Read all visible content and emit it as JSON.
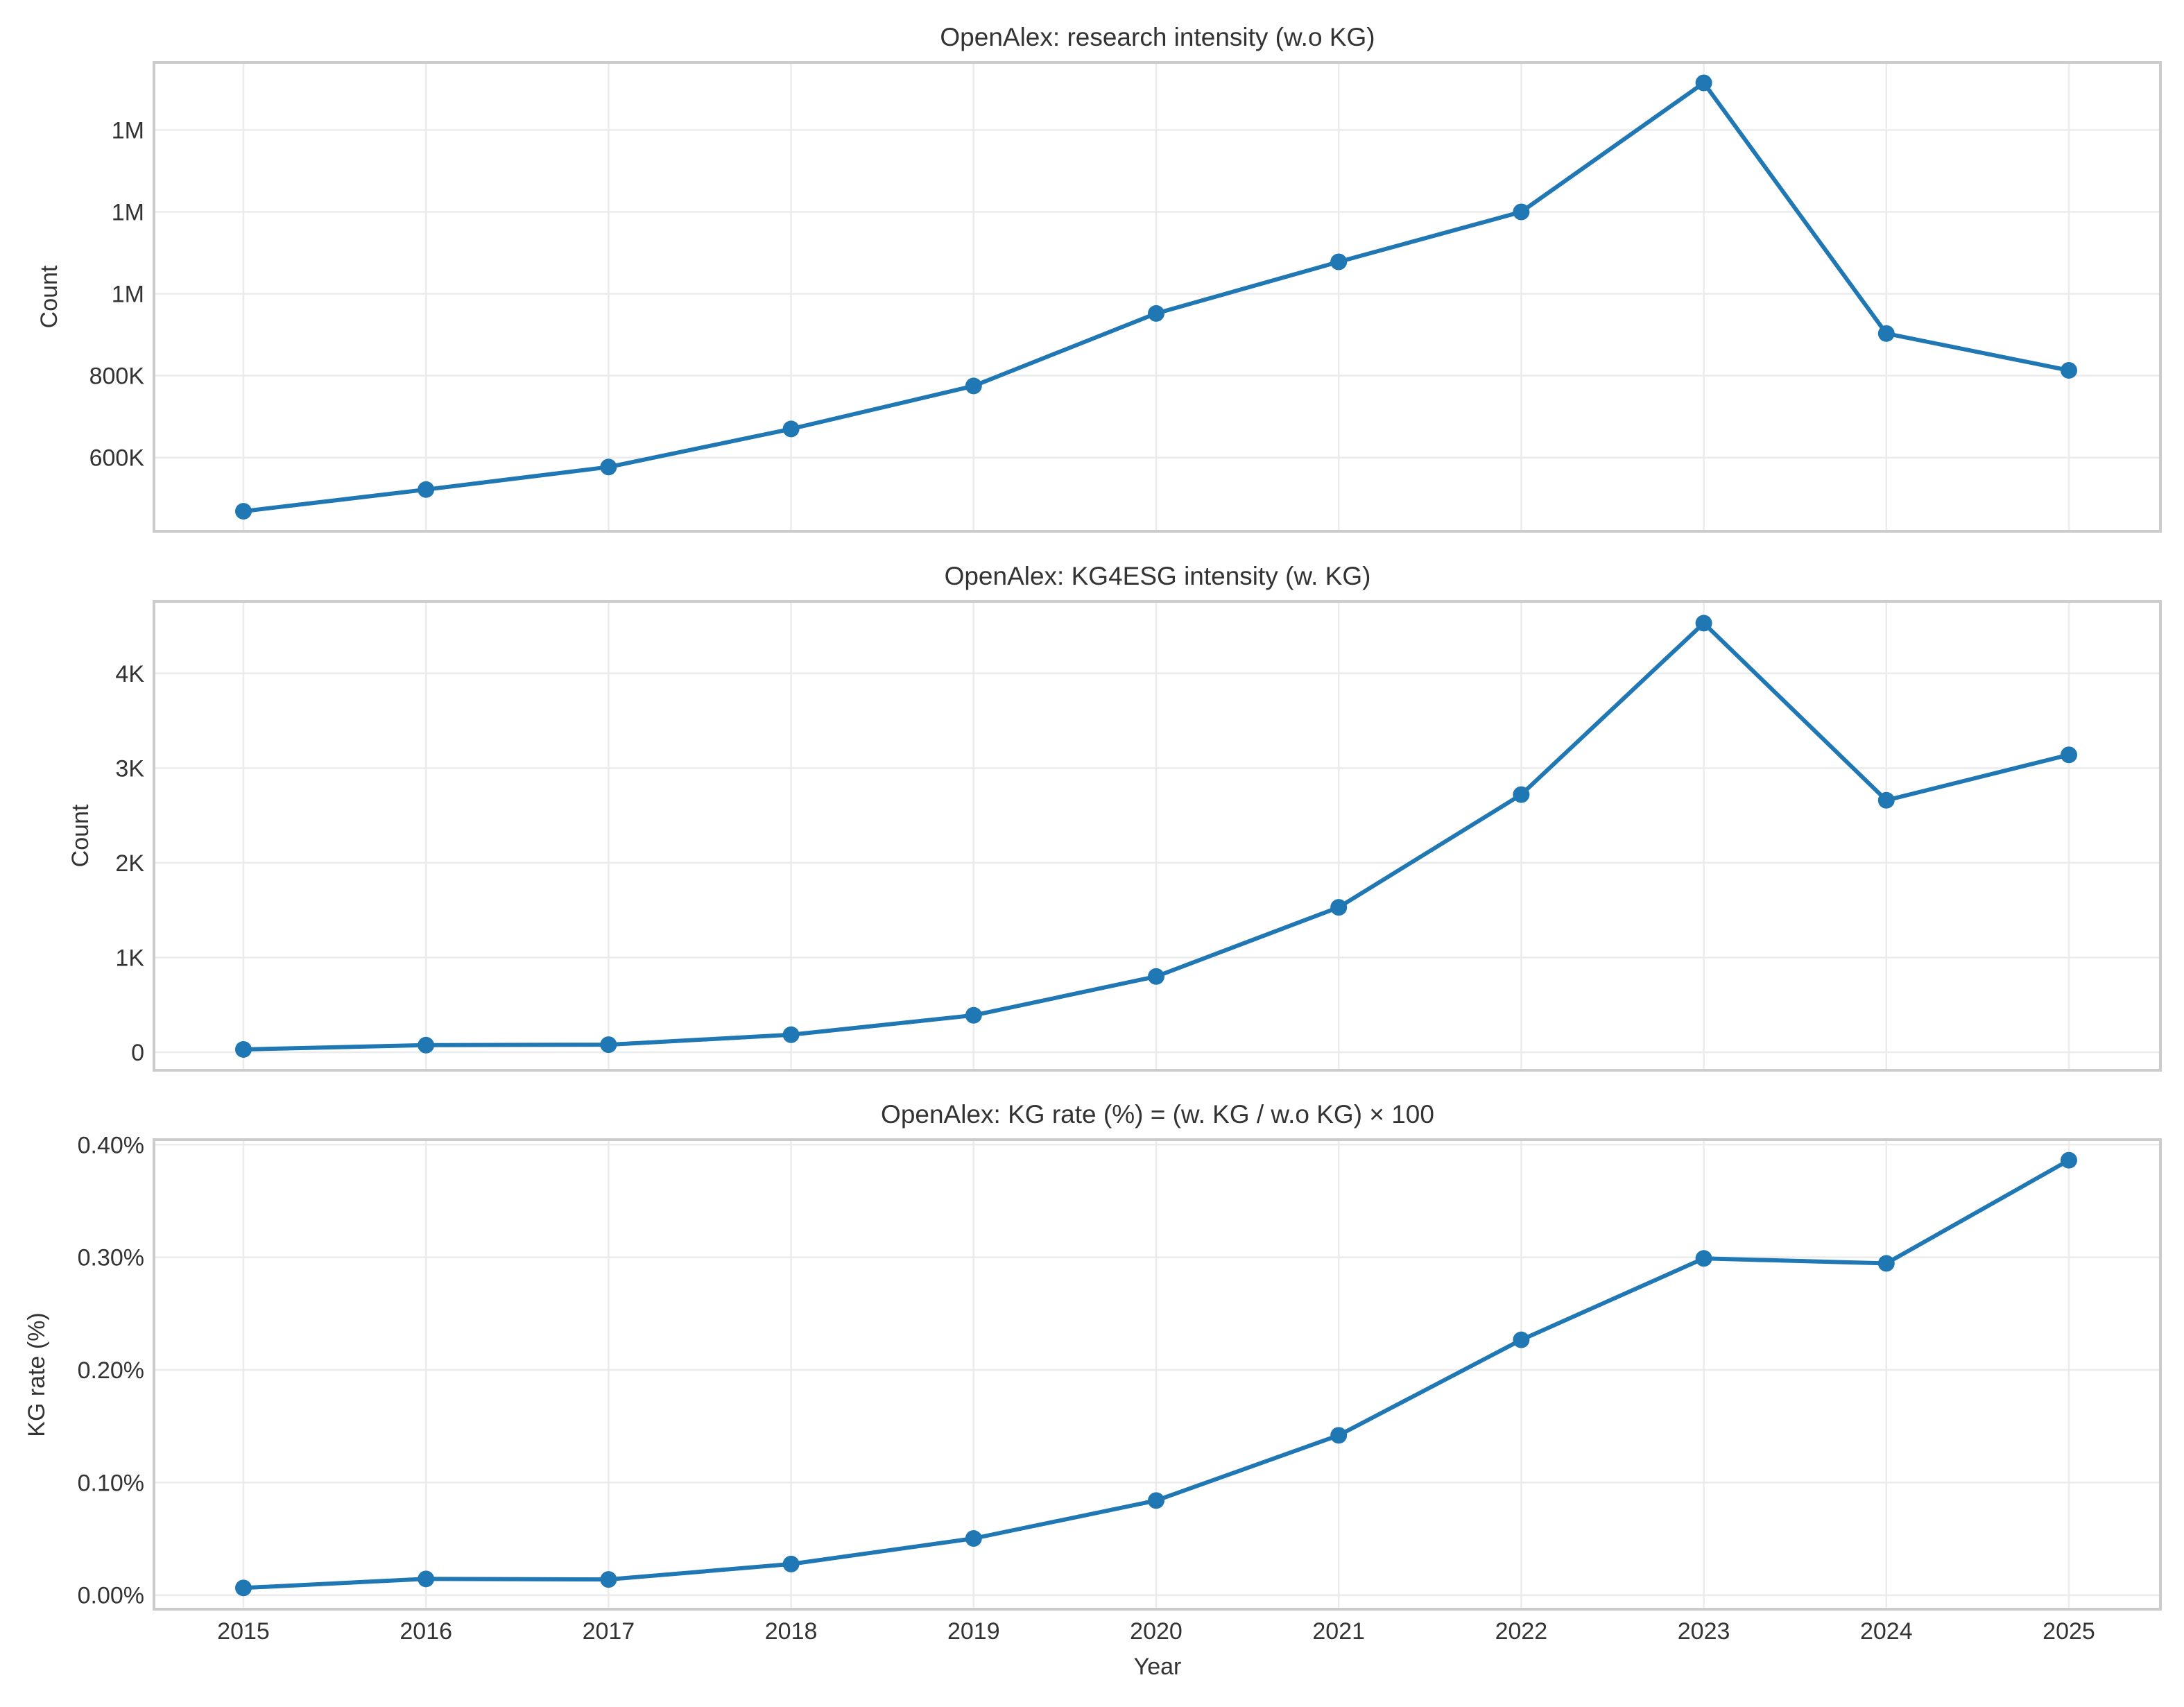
{
  "colors": {
    "series": "#1f77b4"
  },
  "chart_data": [
    {
      "type": "line",
      "title": "OpenAlex: research intensity (w.o KG)",
      "xlabel": "",
      "ylabel": "Count",
      "x": [
        2015,
        2016,
        2017,
        2018,
        2019,
        2020,
        2021,
        2022,
        2023,
        2024,
        2025
      ],
      "series": [
        {
          "name": "research intensity (w.o KG)",
          "values": [
            469000,
            522000,
            577000,
            670000,
            775000,
            952000,
            1078000,
            1200000,
            1515000,
            903000,
            813000
          ]
        }
      ],
      "ylim": [
        420000,
        1565000
      ],
      "yticks": [
        {
          "value": 600000,
          "label": "600K"
        },
        {
          "value": 800000,
          "label": "800K"
        },
        {
          "value": 1000000,
          "label": "1M"
        },
        {
          "value": 1200000,
          "label": "1M"
        },
        {
          "value": 1400000,
          "label": "1M"
        }
      ],
      "show_x_ticklabels": false,
      "grid": true
    },
    {
      "type": "line",
      "title": "OpenAlex: KG4ESG intensity (w. KG)",
      "xlabel": "",
      "ylabel": "Count",
      "x": [
        2015,
        2016,
        2017,
        2018,
        2019,
        2020,
        2021,
        2022,
        2023,
        2024,
        2025
      ],
      "series": [
        {
          "name": "KG4ESG intensity (w. KG)",
          "values": [
            30,
            75,
            80,
            185,
            390,
            800,
            1530,
            2720,
            4530,
            2660,
            3140
          ]
        }
      ],
      "ylim": [
        -190,
        4760
      ],
      "yticks": [
        {
          "value": 0,
          "label": "0"
        },
        {
          "value": 1000,
          "label": "1K"
        },
        {
          "value": 2000,
          "label": "2K"
        },
        {
          "value": 3000,
          "label": "3K"
        },
        {
          "value": 4000,
          "label": "4K"
        }
      ],
      "show_x_ticklabels": false,
      "grid": true
    },
    {
      "type": "line",
      "title": "OpenAlex: KG rate (%) = (w. KG / w.o KG) × 100",
      "xlabel": "Year",
      "ylabel": "KG rate (%)",
      "x": [
        2015,
        2016,
        2017,
        2018,
        2019,
        2020,
        2021,
        2022,
        2023,
        2024,
        2025
      ],
      "series": [
        {
          "name": "KG rate (%)",
          "values": [
            0.0064,
            0.0144,
            0.0139,
            0.0276,
            0.0503,
            0.084,
            0.1419,
            0.2267,
            0.299,
            0.2946,
            0.3862
          ]
        }
      ],
      "ylim": [
        -0.0125,
        0.4045
      ],
      "yticks": [
        {
          "value": 0.0,
          "label": "0.00%"
        },
        {
          "value": 0.1,
          "label": "0.10%"
        },
        {
          "value": 0.2,
          "label": "0.20%"
        },
        {
          "value": 0.3,
          "label": "0.30%"
        },
        {
          "value": 0.4,
          "label": "0.40%"
        }
      ],
      "show_x_ticklabels": true,
      "grid": true
    }
  ]
}
